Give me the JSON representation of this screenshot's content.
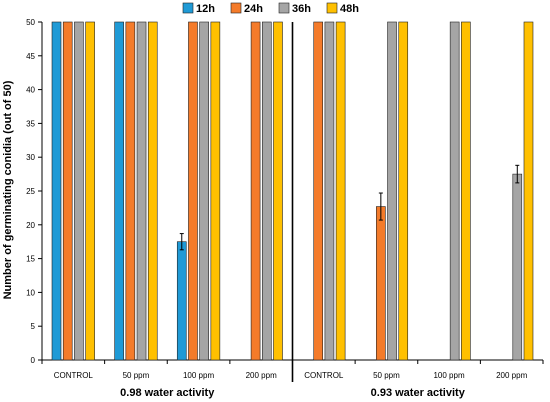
{
  "chart_data": {
    "type": "bar",
    "ylabel": "Number of germinating conidia (out of 50)",
    "ylim": [
      0,
      50
    ],
    "yticks": [
      0,
      5,
      10,
      15,
      20,
      25,
      30,
      35,
      40,
      45,
      50
    ],
    "legend_position": "top-center",
    "groups": [
      {
        "label": "0.98 water activity",
        "categories": [
          "CONTROL",
          "50 ppm",
          "100 ppm",
          "200 ppm"
        ]
      },
      {
        "label": "0.93 water activity",
        "categories": [
          "CONTROL",
          "50 ppm",
          "100 ppm",
          "200 ppm"
        ]
      }
    ],
    "categories": [
      "CONTROL",
      "50 ppm",
      "100 ppm",
      "200 ppm",
      "CONTROL",
      "50 ppm",
      "100 ppm",
      "200 ppm"
    ],
    "series": [
      {
        "name": "12h",
        "color": "#1f9ad6",
        "values": [
          50,
          50,
          17.5,
          0,
          0,
          0,
          0,
          0
        ],
        "errors": [
          0,
          0,
          1.2,
          0,
          0,
          0,
          0,
          0
        ]
      },
      {
        "name": "24h",
        "color": "#f47b2a",
        "values": [
          50,
          50,
          50,
          50,
          50,
          22.7,
          0,
          0
        ],
        "errors": [
          0,
          0,
          0,
          0,
          0,
          2.0,
          0,
          0
        ]
      },
      {
        "name": "36h",
        "color": "#a5a5a5",
        "values": [
          50,
          50,
          50,
          50,
          50,
          50,
          50,
          27.5
        ],
        "errors": [
          0,
          0,
          0,
          0,
          0,
          0,
          0,
          1.3
        ]
      },
      {
        "name": "48h",
        "color": "#ffc000",
        "values": [
          50,
          50,
          50,
          50,
          50,
          50,
          50,
          50
        ],
        "errors": [
          0,
          0,
          0,
          0,
          0,
          0,
          0,
          0
        ]
      }
    ],
    "grid": false
  }
}
